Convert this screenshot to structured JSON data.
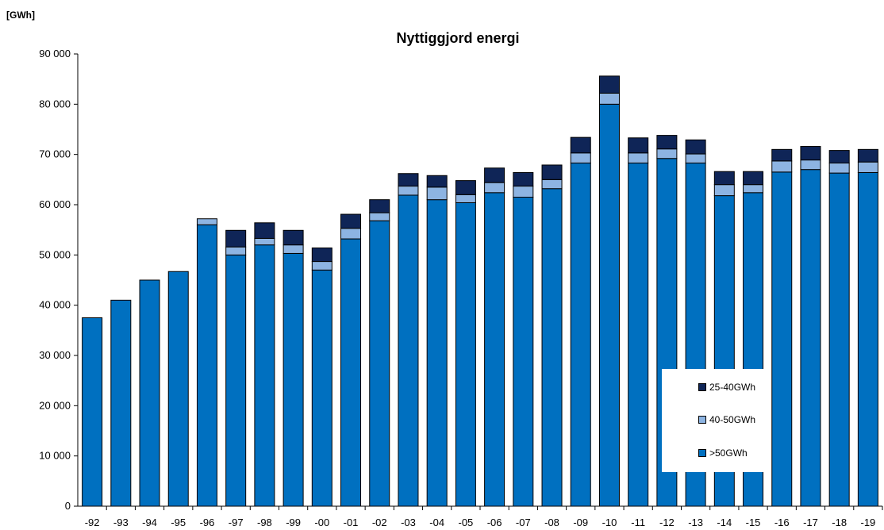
{
  "header": {
    "unit": "[GWh]",
    "title": "Nyttiggjord energi"
  },
  "colors": {
    "gt50": "#0070C0",
    "s40_50": "#8DB4E2",
    "s25_40": "#0F2557",
    "axis": "#000000"
  },
  "legend": {
    "placement": "bottom-right",
    "items": [
      {
        "key": "s25_40",
        "label": "25-40GWh"
      },
      {
        "key": "s40_50",
        "label": "40-50GWh"
      },
      {
        "key": "gt50",
        "label": ">50GWh"
      }
    ]
  },
  "chart_data": {
    "type": "bar",
    "stacked": true,
    "title": "Nyttiggjord energi",
    "ylabel": "[GWh]",
    "xlabel": "",
    "ylim": [
      0,
      90000
    ],
    "yticks": [
      0,
      10000,
      20000,
      30000,
      40000,
      50000,
      60000,
      70000,
      80000,
      90000
    ],
    "ytick_labels": [
      "0",
      "10 000",
      "20 000",
      "30 000",
      "40 000",
      "50 000",
      "60 000",
      "70 000",
      "80 000",
      "90 000"
    ],
    "grid": false,
    "categories": [
      "-92",
      "-93",
      "-94",
      "-95",
      "-96",
      "-97",
      "-98",
      "-99",
      "-00",
      "-01",
      "-02",
      "-03",
      "-04",
      "-05",
      "-06",
      "-07",
      "-08",
      "-09",
      "-10",
      "-11",
      "-12",
      "-13",
      "-14",
      "-15",
      "-16",
      "-17",
      "-18",
      "-19"
    ],
    "series": [
      {
        "name": ">50GWh",
        "key": "gt50",
        "values": [
          37500,
          41000,
          45000,
          46700,
          56000,
          50000,
          52000,
          50300,
          47000,
          53200,
          56800,
          61900,
          61000,
          60400,
          62400,
          61500,
          63200,
          68300,
          80000,
          68300,
          69200,
          68300,
          61800,
          62400,
          66500,
          67000,
          66300,
          66400
        ]
      },
      {
        "name": "40-50GWh",
        "key": "s40_50",
        "values": [
          0,
          0,
          0,
          0,
          1200,
          1600,
          1300,
          1700,
          1700,
          2100,
          1600,
          1800,
          2500,
          1600,
          2000,
          2200,
          1800,
          2000,
          2200,
          2000,
          1900,
          1800,
          2200,
          1600,
          2200,
          1900,
          2000,
          2100
        ]
      },
      {
        "name": "25-40GWh",
        "key": "s25_40",
        "values": [
          0,
          0,
          0,
          0,
          0,
          3300,
          3100,
          2900,
          2700,
          2800,
          2600,
          2500,
          2300,
          2800,
          2900,
          2700,
          2900,
          3100,
          3400,
          3000,
          2700,
          2800,
          2600,
          2600,
          2300,
          2700,
          2500,
          2500
        ]
      }
    ]
  }
}
